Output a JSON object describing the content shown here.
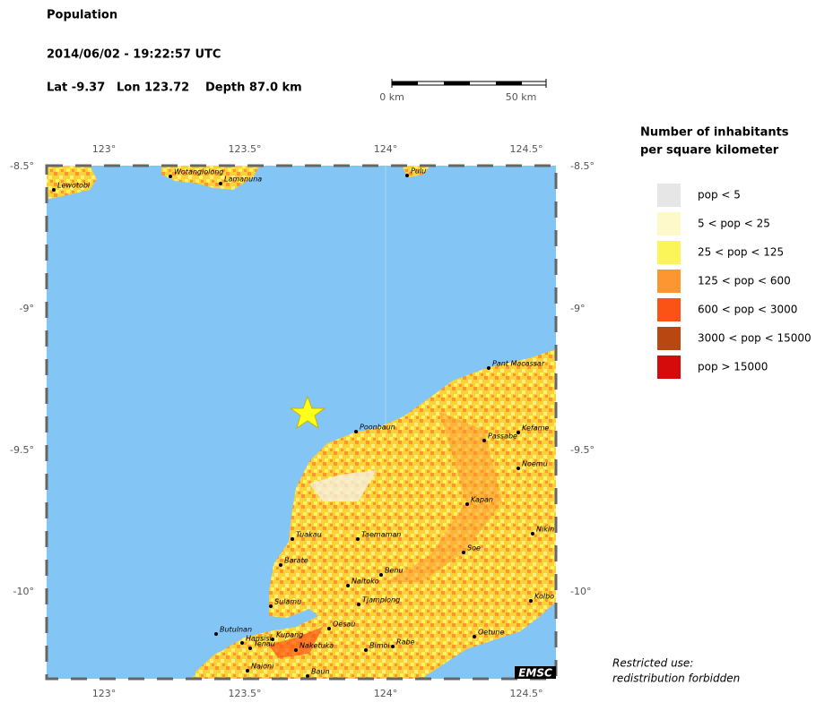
{
  "header": {
    "title": "Population",
    "datetime": "2014/06/02 - 19:22:57 UTC",
    "lat": "Lat -9.37",
    "lon": "Lon 123.72",
    "depth": "Depth  87.0 km"
  },
  "scale": {
    "start": "0 km",
    "end": "50 km"
  },
  "map": {
    "x_ticks": [
      "123°",
      "123.5°",
      "124°",
      "124.5°"
    ],
    "y_ticks": [
      "-8.5°",
      "-9°",
      "-9.5°",
      "-10°"
    ],
    "towns": [
      "Lewotobi",
      "Wotangiolong",
      "Lamanuna",
      "Pulu",
      "Pant Macassar",
      "Poonbaun",
      "Passabe",
      "Kefame",
      "Noemu",
      "Kapan",
      "Nikin",
      "Tuakau",
      "Taemaman",
      "Soe",
      "Barate",
      "Benu",
      "Naitoko",
      "Tjamplong",
      "Kolbo",
      "Sulamu",
      "Oesau",
      "Oetune",
      "Butulnan",
      "Hansisi",
      "Tenau",
      "Kupang",
      "Naketuka",
      "Bimoi",
      "Rabe",
      "Naioni",
      "Baun"
    ],
    "credit": "EMSC"
  },
  "legend": {
    "title": [
      "Number of inhabitants",
      "per square kilometer"
    ],
    "items": [
      {
        "label": "pop < 5",
        "color": "#e6e6e6"
      },
      {
        "label": "5 < pop < 25",
        "color": "#fdf9c8"
      },
      {
        "label": "25 < pop < 125",
        "color": "#fcf55a"
      },
      {
        "label": "125 < pop < 600",
        "color": "#fb9631"
      },
      {
        "label": "600 < pop < 3000",
        "color": "#fb5216"
      },
      {
        "label": "3000 < pop < 15000",
        "color": "#b94712"
      },
      {
        "label": "pop > 15000",
        "color": "#d50b0b"
      }
    ]
  },
  "note": [
    "Restricted use:",
    "redistribution forbidden"
  ]
}
